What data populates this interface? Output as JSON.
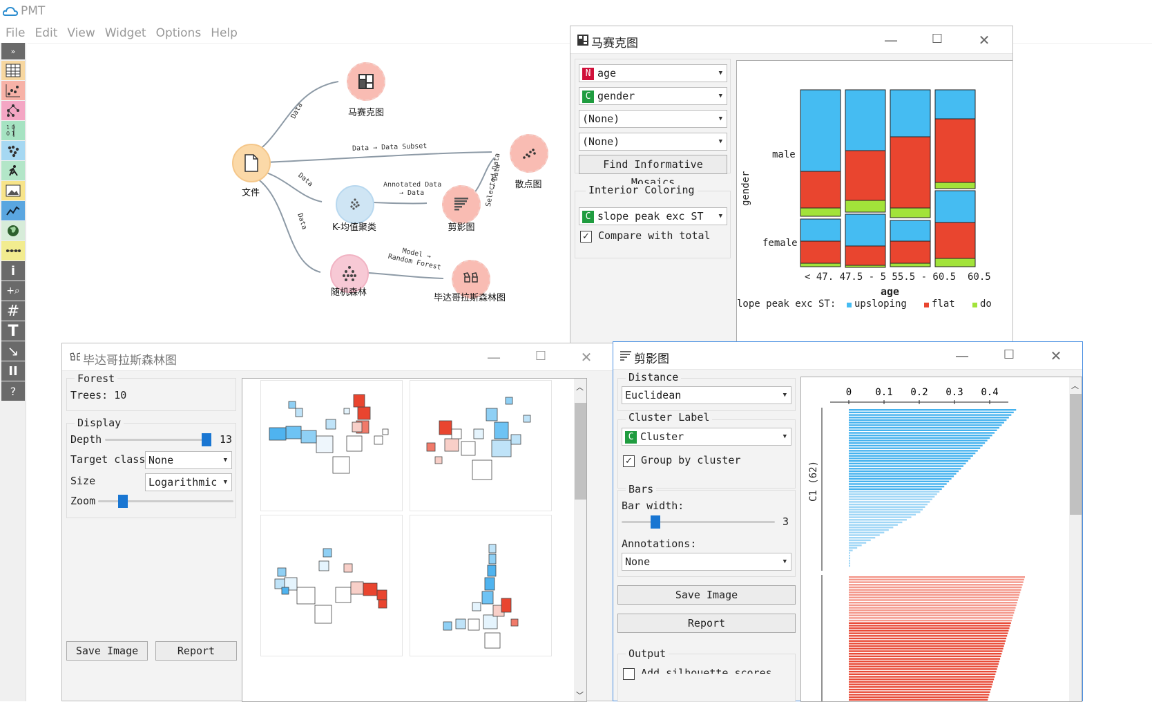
{
  "app": {
    "title": "PMT"
  },
  "menu": [
    "File",
    "Edit",
    "View",
    "Widget",
    "Options",
    "Help"
  ],
  "toolbar": {
    "collapse": "»",
    "info": "i",
    "zoom": "+⌕",
    "grid": "#",
    "text": "T",
    "arrow": "↘",
    "pause": "II",
    "help": "?"
  },
  "canvas": {
    "nodes": {
      "file": "文件",
      "mosaic": "马赛克图",
      "scatter": "散点图",
      "kmeans": "K-均值聚类",
      "silhouette": "剪影图",
      "forest": "随机森林",
      "pythagorean": "毕达哥拉斯森林图"
    },
    "edges": {
      "e1": "Data",
      "e2": "Data → Data  Subset",
      "e3": "Data",
      "e4": "Data",
      "e5a": "Annotated  Data",
      "e5b": "→  Data",
      "e6a": "Selected  Data",
      "e6b": "→  Data",
      "e7a": "Model  →",
      "e7b": "Random  Forest"
    }
  },
  "mosaic_window": {
    "title": "马赛克图",
    "var1": {
      "badge": "N",
      "label": "age"
    },
    "var2": {
      "badge": "C",
      "label": "gender"
    },
    "var3": "(None)",
    "var4": "(None)",
    "find_button": "Find Informative Mosaics",
    "interior_header": "Interior Coloring",
    "interior": {
      "badge": "C",
      "label": "slope peak exc ST"
    },
    "compare_label": "Compare with total",
    "compare_checked": "✓",
    "colors": {
      "upsloping": "#45bcf2",
      "flat": "#e9452f",
      "down": "#a2e33a"
    },
    "chart": {
      "y_title": "gender",
      "rows": [
        "male",
        "female"
      ],
      "x_title": "age",
      "x_ticks": [
        "< 47.5",
        "47.5 - 55.5",
        "55.5 - 60.5",
        "≥ 60.5"
      ],
      "tick_overlap": "< 47. 47.5 - 5 55.5 - 60.5  60.5",
      "legend_title": "lope peak exc ST:",
      "legend": [
        "upsloping",
        "flat",
        "do"
      ]
    }
  },
  "forest_window": {
    "title": "毕达哥拉斯森林图",
    "forest_header": "Forest",
    "trees": "Trees: 10",
    "display_header": "Display",
    "depth_label": "Depth",
    "depth_value": "13",
    "target_label": "Target class",
    "target_value": "None",
    "size_label": "Size",
    "size_value": "Logarithmic",
    "zoom_label": "Zoom",
    "save_button": "Save Image",
    "report_button": "Report"
  },
  "silhouette_window": {
    "title": "剪影图",
    "distance_header": "Distance",
    "distance_value": "Euclidean",
    "cluster_header": "Cluster Label",
    "cluster": {
      "badge": "C",
      "label": "Cluster"
    },
    "group_label": "Group by cluster",
    "group_checked": "✓",
    "bars_header": "Bars",
    "bar_width_label": "Bar width:",
    "bar_width_value": "3",
    "annotations_label": "Annotations:",
    "annotations_value": "None",
    "save_button": "Save Image",
    "report_button": "Report",
    "output_header": "Output",
    "add_scores_label": "Add silhouette scores",
    "chart": {
      "x_ticks": [
        "0",
        "0.1",
        "0.2",
        "0.3",
        "0.4"
      ],
      "cluster1_label": "C1 (62)"
    }
  }
}
